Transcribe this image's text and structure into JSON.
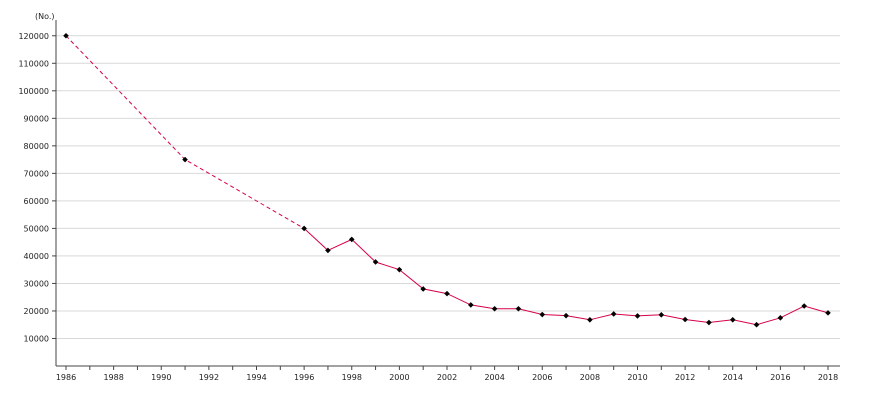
{
  "chart_data": {
    "type": "line",
    "title": "",
    "xlabel": "",
    "ylabel": "",
    "y_unit": "(No.)",
    "xlim": [
      1986,
      2018
    ],
    "ylim": [
      0,
      125000
    ],
    "x_ticks": [
      1986,
      1988,
      1990,
      1992,
      1994,
      1996,
      1998,
      2000,
      2002,
      2004,
      2006,
      2008,
      2010,
      2012,
      2014,
      2016,
      2018
    ],
    "y_ticks": [
      10000,
      20000,
      30000,
      40000,
      50000,
      60000,
      70000,
      80000,
      90000,
      100000,
      110000,
      120000
    ],
    "grid": "horizontal",
    "legend": "none",
    "line_color": "#d6004c",
    "marker_color": "#000000",
    "series": [
      {
        "points": [
          {
            "x": 1986,
            "y": 120000
          },
          {
            "x": 1991,
            "y": 75000
          },
          {
            "x": 1996,
            "y": 50000
          },
          {
            "x": 1997,
            "y": 42000
          },
          {
            "x": 1998,
            "y": 46000
          },
          {
            "x": 1999,
            "y": 37800
          },
          {
            "x": 2000,
            "y": 35000
          },
          {
            "x": 2001,
            "y": 28000
          },
          {
            "x": 2002,
            "y": 26300
          },
          {
            "x": 2003,
            "y": 22200
          },
          {
            "x": 2004,
            "y": 20800
          },
          {
            "x": 2005,
            "y": 20800
          },
          {
            "x": 2006,
            "y": 18700
          },
          {
            "x": 2007,
            "y": 18300
          },
          {
            "x": 2008,
            "y": 16800
          },
          {
            "x": 2009,
            "y": 18900
          },
          {
            "x": 2010,
            "y": 18200
          },
          {
            "x": 2011,
            "y": 18600
          },
          {
            "x": 2012,
            "y": 16900
          },
          {
            "x": 2013,
            "y": 15800
          },
          {
            "x": 2014,
            "y": 16800
          },
          {
            "x": 2015,
            "y": 15000
          },
          {
            "x": 2016,
            "y": 17500
          },
          {
            "x": 2017,
            "y": 21800
          },
          {
            "x": 2018,
            "y": 19300
          }
        ],
        "dashed_until_x": 1996
      }
    ]
  }
}
